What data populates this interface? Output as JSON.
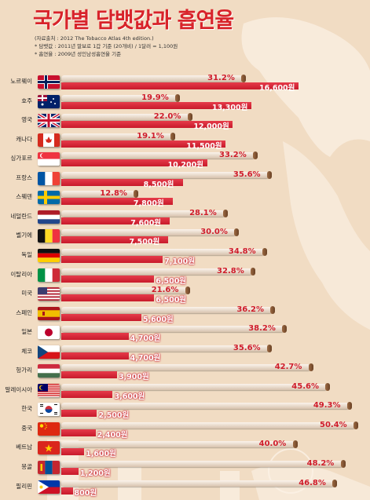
{
  "title": "국가별 담뱃값과 흡연율",
  "notes": [
    "(자료출처 : 2012 The Tobacco Atlas 4th edition.)",
    "* 담뱃값 : 2011년 말보로 1갑 기준 (20개비) / 1달러 = 1,100원",
    "* 흡연율 : 2009년 성인남성흡연율 기준"
  ],
  "chart_data": {
    "type": "bar",
    "title": "국가별 담뱃값과 흡연율",
    "categories": [
      "노르웨이",
      "호주",
      "영국",
      "캐나다",
      "싱가포르",
      "프랑스",
      "스웨덴",
      "네덜란드",
      "벨기에",
      "독일",
      "이탈리아",
      "미국",
      "스페인",
      "일본",
      "체코",
      "헝가리",
      "말레이시아",
      "한국",
      "중국",
      "베트남",
      "몽골",
      "필리핀"
    ],
    "series": [
      {
        "name": "",
        "unit": "원",
        "values": [
          16600,
          13300,
          12000,
          11500,
          10200,
          8500,
          7800,
          7600,
          7500,
          7100,
          6500,
          6500,
          5600,
          4700,
          4700,
          3900,
          3600,
          2500,
          2400,
          1600,
          1200,
          800
        ]
      },
      {
        "name": "",
        "unit": "%",
        "values": [
          31.2,
          19.9,
          22.0,
          19.1,
          33.2,
          35.6,
          12.8,
          28.1,
          30.0,
          34.8,
          32.8,
          21.6,
          36.2,
          38.2,
          35.6,
          42.7,
          45.6,
          49.3,
          50.4,
          40.0,
          48.2,
          46.8
        ]
      }
    ],
    "price_labels": [
      "16,600원",
      "13,300원",
      "12,000원",
      "11,500원",
      "10,200원",
      "8,500원",
      "7,800원",
      "7,600원",
      "7,500원",
      "7,100원",
      "6,500원",
      "6,500원",
      "5,600원",
      "4,700원",
      "4,700원",
      "3,900원",
      "3,600원",
      "2,500원",
      "2,400원",
      "1,600원",
      "1,200원",
      "800원"
    ],
    "rate_labels": [
      "31.2%",
      "19.9%",
      "22.0%",
      "19.1%",
      "33.2%",
      "35.6%",
      "12.8%",
      "28.1%",
      "30.0%",
      "34.8%",
      "32.8%",
      "21.6%",
      "36.2%",
      "38.2%",
      "35.6%",
      "42.7%",
      "45.6%",
      "49.3%",
      "50.4%",
      "40.0%",
      "48.2%",
      "46.8%"
    ],
    "flags": [
      "norway",
      "australia",
      "uk",
      "canada",
      "singapore",
      "france",
      "sweden",
      "netherlands",
      "belgium",
      "germany",
      "italy",
      "usa",
      "spain",
      "japan",
      "czech",
      "hungary",
      "malaysia",
      "korea",
      "china",
      "vietnam",
      "mongolia",
      "philippines"
    ]
  },
  "colors": {
    "background": "#f1dcc3",
    "title": "#d8232a",
    "price_bar": "#d4202f",
    "rate_text": "#cf1d2a",
    "rod": "#e8d8c8",
    "rod_cap": "#7a4d2d"
  }
}
